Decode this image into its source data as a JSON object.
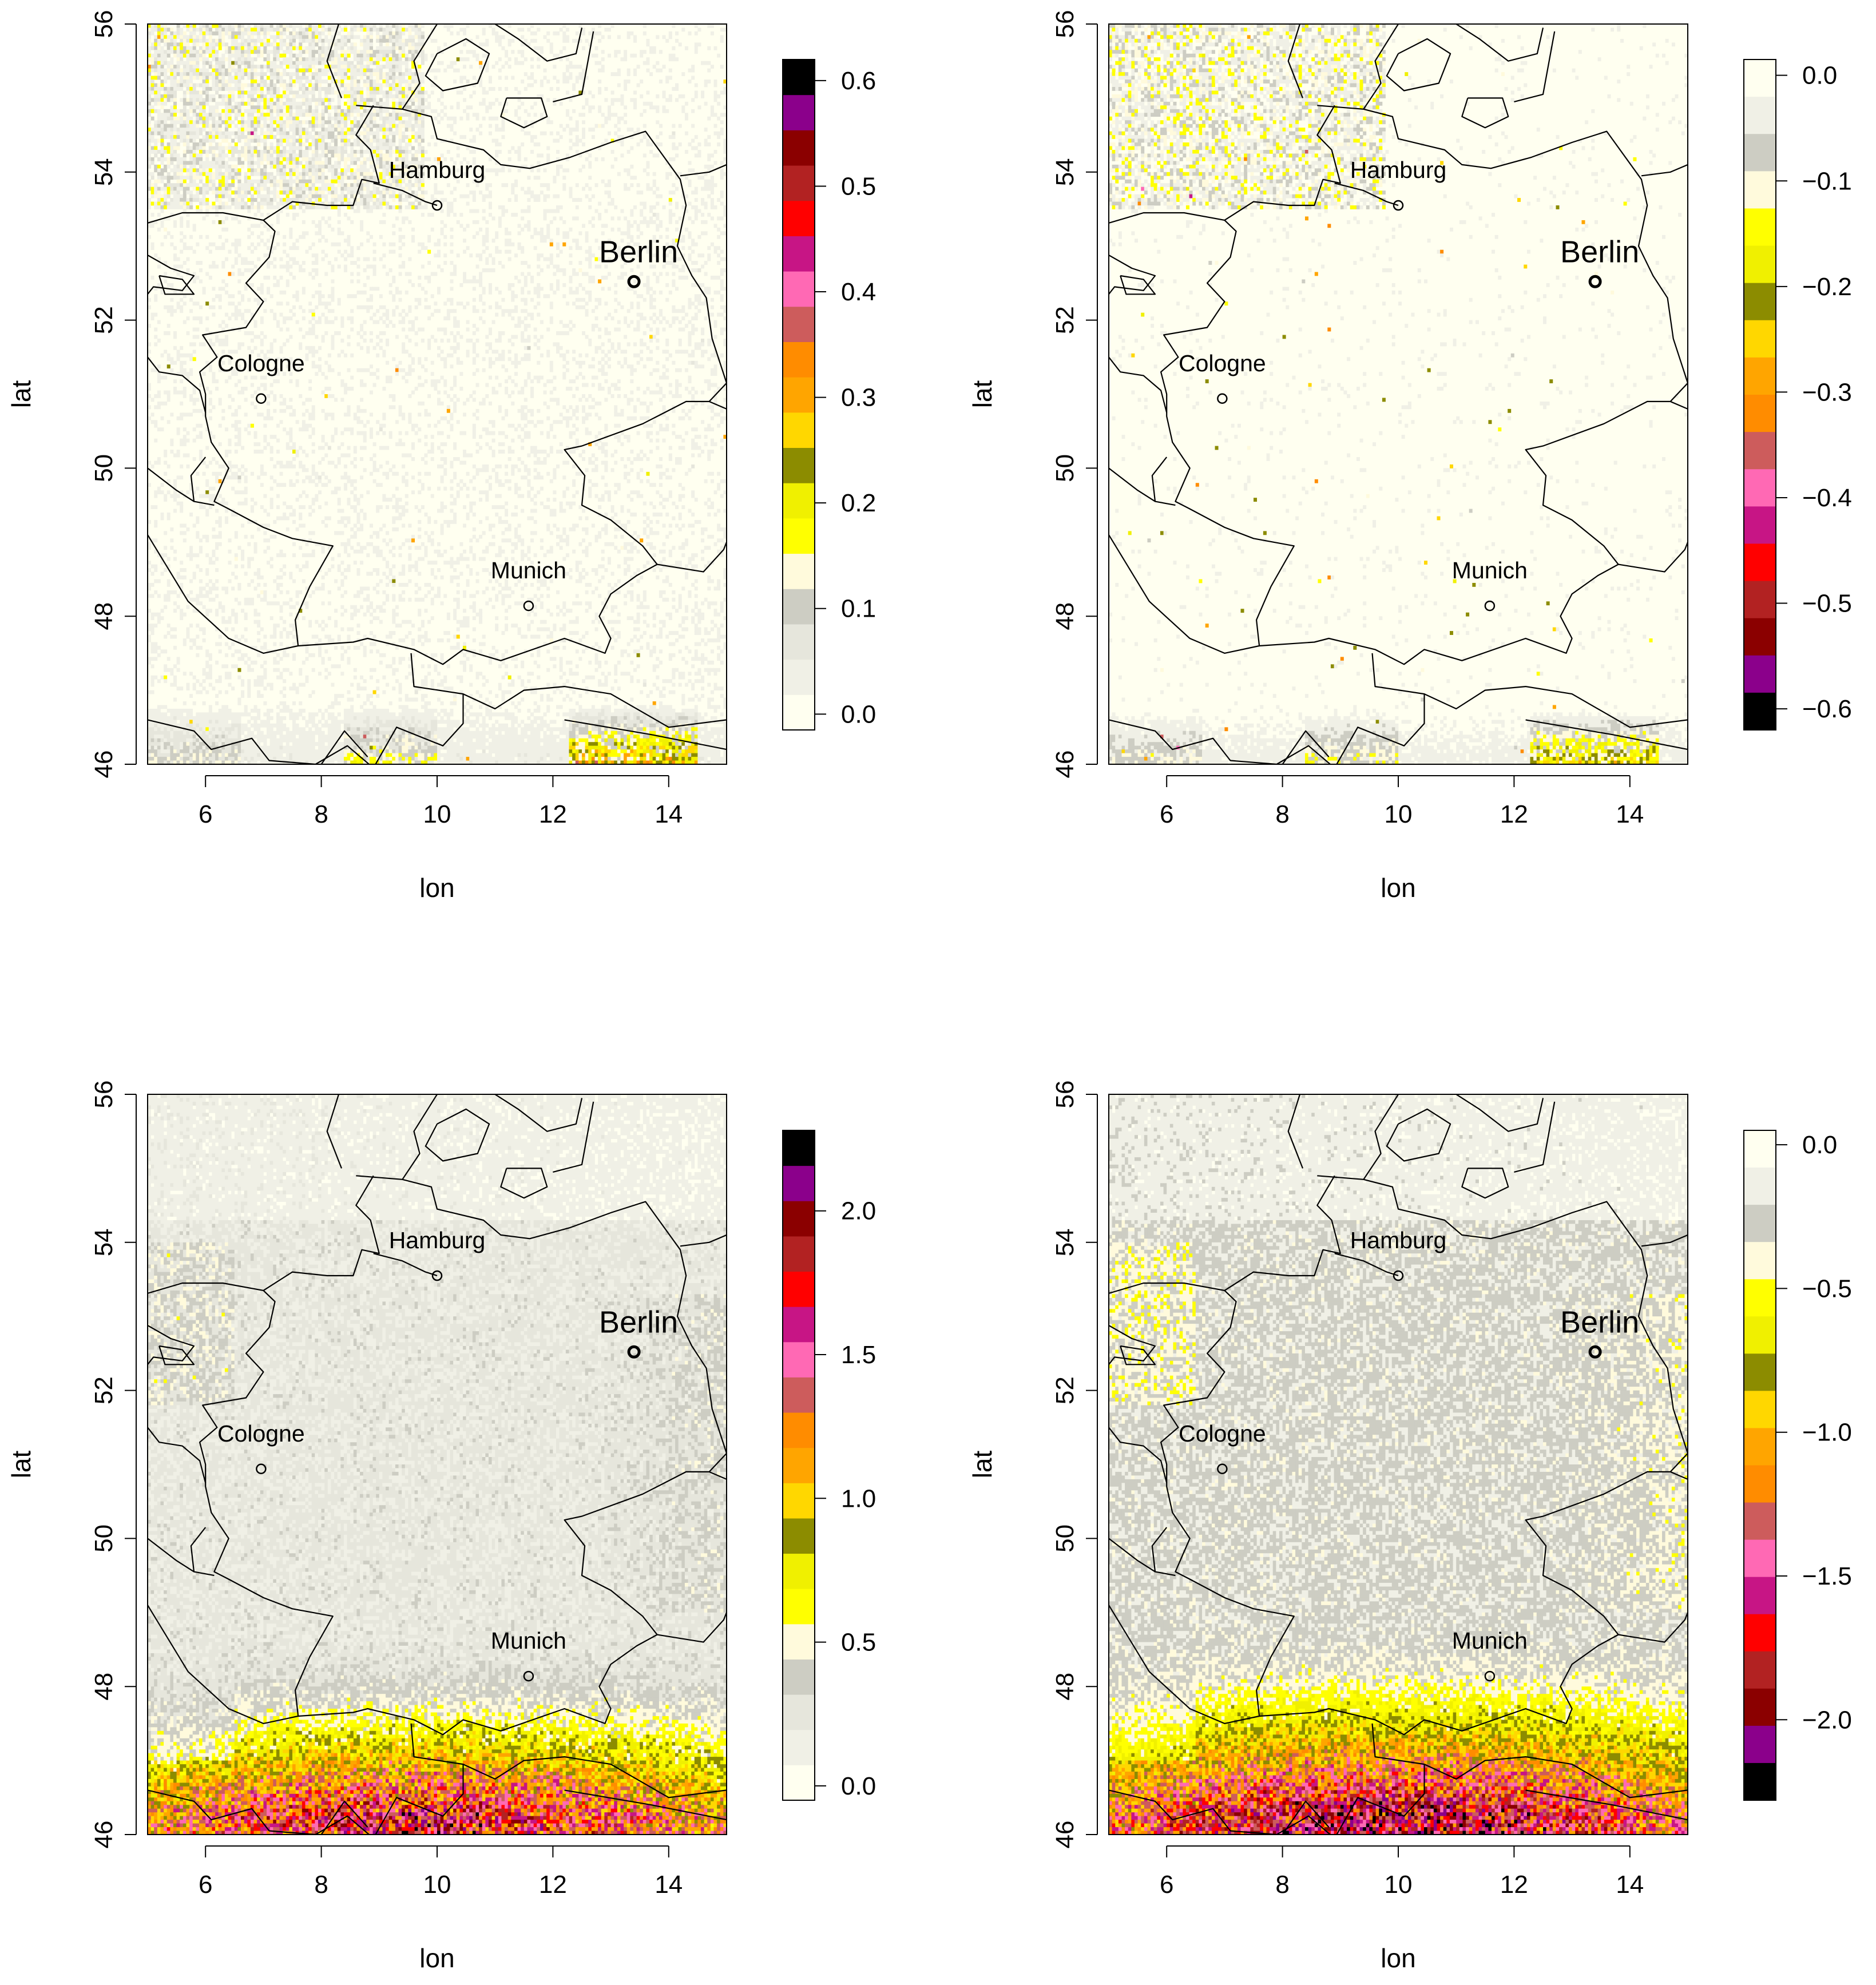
{
  "colors": {
    "map_background": "#fffff0",
    "border": "#000000",
    "positive_scale": [
      "#fffff0",
      "#f0f0e6",
      "#e6e6dc",
      "#cdcdc3",
      "#fffadc",
      "#ffff00",
      "#f0f000",
      "#8c8c00",
      "#ffd700",
      "#ffa500",
      "#ff8c00",
      "#cd5c5c",
      "#ff69b4",
      "#c71585",
      "#ff0000",
      "#b22222",
      "#8b0000",
      "#8b008b",
      "#000000"
    ],
    "negative_scale": [
      "#fffff0",
      "#f0f0e6",
      "#cdcdc3",
      "#fffadc",
      "#ffff00",
      "#f0f000",
      "#8c8c00",
      "#ffd700",
      "#ffa500",
      "#ff8c00",
      "#cd5c5c",
      "#ff69b4",
      "#c71585",
      "#ff0000",
      "#b22222",
      "#8b0000",
      "#8b008b",
      "#000000"
    ]
  },
  "chart_data": [
    {
      "type": "heatmap",
      "panel": "top-left",
      "xlabel": "lon",
      "ylabel": "lat",
      "xlim": [
        5,
        15
      ],
      "ylim": [
        46,
        56
      ],
      "x_ticks": [
        "6",
        "8",
        "10",
        "12",
        "14"
      ],
      "y_ticks": [
        "46",
        "48",
        "50",
        "52",
        "54",
        "56"
      ],
      "colorbar": {
        "range": [
          -0.015,
          0.62
        ],
        "ticks": [
          "0.0",
          "0.1",
          "0.2",
          "0.3",
          "0.4",
          "0.5",
          "0.6"
        ],
        "tick_values": [
          0,
          0.1,
          0.2,
          0.3,
          0.4,
          0.5,
          0.6
        ],
        "scale": "positive"
      },
      "pattern": {
        "sign": 1,
        "noise_level": 0.04,
        "north_noise": 0.09,
        "alpine_max": 0.28,
        "alpine_start": 46.8
      },
      "cities": [
        {
          "name": "Hamburg",
          "lon": 10.0,
          "lat": 53.55,
          "size": "normal"
        },
        {
          "name": "Berlin",
          "lon": 13.4,
          "lat": 52.52,
          "size": "large"
        },
        {
          "name": "Cologne",
          "lon": 6.96,
          "lat": 50.94,
          "size": "normal"
        },
        {
          "name": "Munich",
          "lon": 11.58,
          "lat": 48.14,
          "size": "normal"
        }
      ]
    },
    {
      "type": "heatmap",
      "panel": "top-right",
      "xlabel": "lon",
      "ylabel": "lat",
      "xlim": [
        5,
        15
      ],
      "ylim": [
        46,
        56
      ],
      "x_ticks": [
        "6",
        "8",
        "10",
        "12",
        "14"
      ],
      "y_ticks": [
        "46",
        "48",
        "50",
        "52",
        "54",
        "56"
      ],
      "colorbar": {
        "range": [
          -0.62,
          0.015
        ],
        "ticks": [
          "0.0",
          "−0.1",
          "−0.2",
          "−0.3",
          "−0.4",
          "−0.5",
          "−0.6"
        ],
        "tick_values": [
          0,
          -0.1,
          -0.2,
          -0.3,
          -0.4,
          -0.5,
          -0.6
        ],
        "scale": "negative"
      },
      "pattern": {
        "sign": -1,
        "noise_level": 0.035,
        "north_noise": 0.08,
        "alpine_max": 0.22,
        "alpine_start": 46.7
      },
      "cities": [
        {
          "name": "Hamburg",
          "lon": 10.0,
          "lat": 53.55,
          "size": "normal"
        },
        {
          "name": "Berlin",
          "lon": 13.4,
          "lat": 52.52,
          "size": "large"
        },
        {
          "name": "Cologne",
          "lon": 6.96,
          "lat": 50.94,
          "size": "normal"
        },
        {
          "name": "Munich",
          "lon": 11.58,
          "lat": 48.14,
          "size": "normal"
        }
      ]
    },
    {
      "type": "heatmap",
      "panel": "bottom-left",
      "xlabel": "lon",
      "ylabel": "lat",
      "xlim": [
        5,
        15
      ],
      "ylim": [
        46,
        56
      ],
      "x_ticks": [
        "6",
        "8",
        "10",
        "12",
        "14"
      ],
      "y_ticks": [
        "46",
        "48",
        "50",
        "52",
        "54",
        "56"
      ],
      "colorbar": {
        "range": [
          -0.05,
          2.28
        ],
        "ticks": [
          "0.0",
          "0.5",
          "1.0",
          "1.5",
          "2.0"
        ],
        "tick_values": [
          0,
          0.5,
          1.0,
          1.5,
          2.0
        ],
        "scale": "positive"
      },
      "pattern": {
        "sign": 1,
        "base": 0.22,
        "noise_level": 0.12,
        "alpine_max": 1.6,
        "alpine_start": 49.0
      },
      "cities": [
        {
          "name": "Hamburg",
          "lon": 10.0,
          "lat": 53.55,
          "size": "normal"
        },
        {
          "name": "Berlin",
          "lon": 13.4,
          "lat": 52.52,
          "size": "large"
        },
        {
          "name": "Cologne",
          "lon": 6.96,
          "lat": 50.94,
          "size": "normal"
        },
        {
          "name": "Munich",
          "lon": 11.58,
          "lat": 48.14,
          "size": "normal"
        }
      ]
    },
    {
      "type": "heatmap",
      "panel": "bottom-right",
      "xlabel": "lon",
      "ylabel": "lat",
      "xlim": [
        5,
        15
      ],
      "ylim": [
        46,
        56
      ],
      "x_ticks": [
        "6",
        "8",
        "10",
        "12",
        "14"
      ],
      "y_ticks": [
        "46",
        "48",
        "50",
        "52",
        "54",
        "56"
      ],
      "colorbar": {
        "range": [
          -2.28,
          0.05
        ],
        "ticks": [
          "0.0",
          "−0.5",
          "−1.0",
          "−1.5",
          "−2.0"
        ],
        "tick_values": [
          0,
          -0.5,
          -1.0,
          -1.5,
          -2.0
        ],
        "scale": "negative"
      },
      "pattern": {
        "sign": -1,
        "base": 0.24,
        "noise_level": 0.12,
        "alpine_max": 1.7,
        "alpine_start": 49.2
      },
      "cities": [
        {
          "name": "Hamburg",
          "lon": 10.0,
          "lat": 53.55,
          "size": "normal"
        },
        {
          "name": "Berlin",
          "lon": 13.4,
          "lat": 52.52,
          "size": "large"
        },
        {
          "name": "Cologne",
          "lon": 6.96,
          "lat": 50.94,
          "size": "normal"
        },
        {
          "name": "Munich",
          "lon": 11.58,
          "lat": 48.14,
          "size": "normal"
        }
      ]
    }
  ]
}
